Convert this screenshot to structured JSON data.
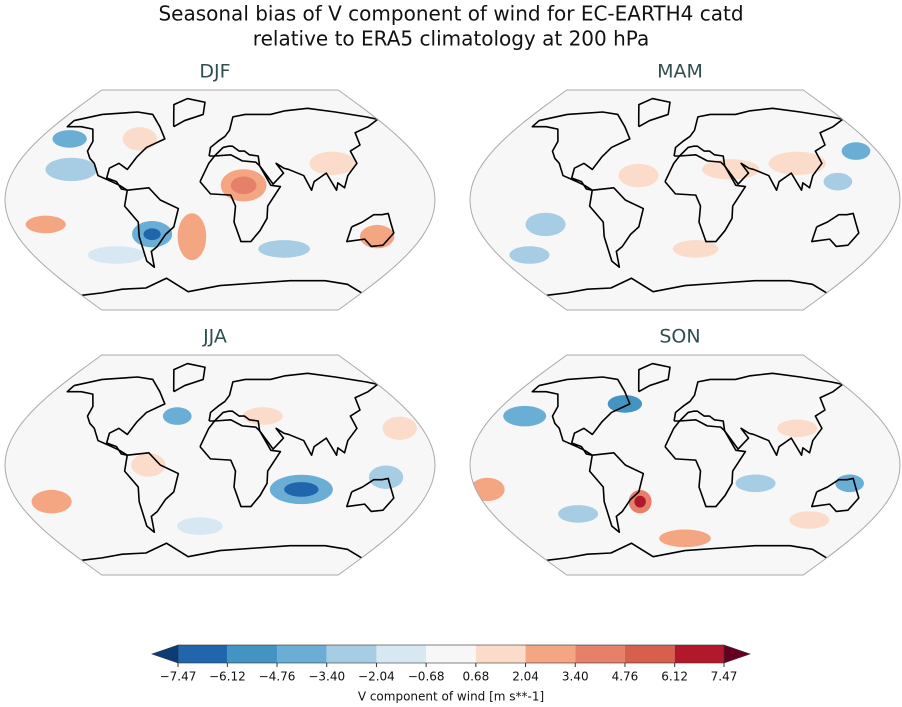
{
  "title": [
    "Seasonal bias of V component of wind for EC-EARTH4 catd",
    "relative to ERA5 climatology at 200 hPa"
  ],
  "panels": [
    {
      "title": "DJF"
    },
    {
      "title": "MAM"
    },
    {
      "title": "JJA"
    },
    {
      "title": "SON"
    }
  ],
  "colorbar": {
    "label": "V component of wind [m s**-1]",
    "ticks": [
      {
        "value": -7.47,
        "label": "−7.47"
      },
      {
        "value": -6.12,
        "label": "−6.12"
      },
      {
        "value": -4.76,
        "label": "−4.76"
      },
      {
        "value": -3.4,
        "label": "−3.40"
      },
      {
        "value": -2.04,
        "label": "−2.04"
      },
      {
        "value": -0.68,
        "label": "−0.68"
      },
      0.68,
      2.04,
      {
        "value": 3.4,
        "label": "3.40"
      },
      4.76,
      6.12,
      7.47
    ],
    "colors": [
      "#2166ac",
      "#4393c3",
      "#6aaed6",
      "#a6cde3",
      "#d8e8f2",
      "#f7f7f7",
      "#fbdccb",
      "#f4a582",
      "#e6806a",
      "#d6604d",
      "#b2182b"
    ],
    "under_color": "#0d3b74",
    "over_color": "#67001f"
  }
}
